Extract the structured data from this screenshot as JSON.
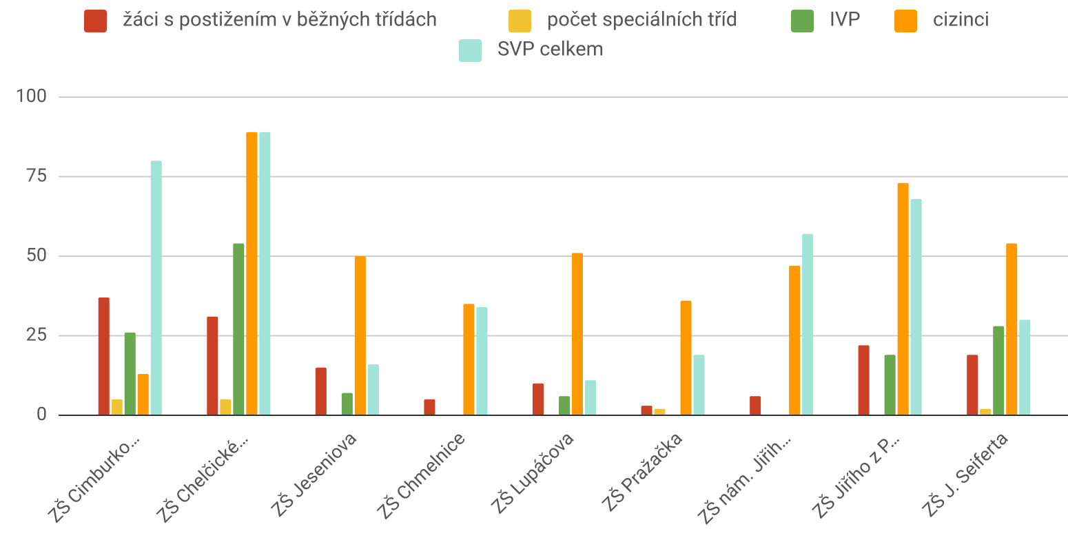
{
  "chart_data": {
    "type": "bar",
    "categories": [
      "ZŠ Cimburko…",
      "ZŠ Chelčické…",
      "ZŠ Jeseniova",
      "ZŠ Chmelnice",
      "ZŠ Lupáčova",
      "ZŠ Pražačka",
      "ZŠ nám. Jiřih…",
      "ZŠ Jiřího z P…",
      "ZŠ J. Seiferta"
    ],
    "series": [
      {
        "name": "žáci s postižením v běžných třídách",
        "color": "#cc4125",
        "values": [
          37,
          31,
          15,
          5,
          10,
          3,
          6,
          22,
          19
        ]
      },
      {
        "name": "počet speciálních tříd",
        "color": "#f1c232",
        "values": [
          5,
          5,
          0,
          0,
          0,
          2,
          0,
          0,
          2
        ]
      },
      {
        "name": "IVP",
        "color": "#6aa84f",
        "values": [
          26,
          54,
          7,
          0,
          6,
          0,
          0,
          19,
          28
        ]
      },
      {
        "name": "cizinci",
        "color": "#ff9900",
        "values": [
          13,
          89,
          50,
          35,
          51,
          36,
          47,
          73,
          54
        ]
      },
      {
        "name": "SVP celkem",
        "color": "#a2e3d8",
        "values": [
          80,
          89,
          16,
          34,
          11,
          19,
          57,
          68,
          30
        ]
      }
    ],
    "ylim": [
      0,
      100
    ],
    "yticks": [
      0,
      25,
      50,
      75,
      100
    ],
    "grid": true,
    "legend": "top"
  }
}
